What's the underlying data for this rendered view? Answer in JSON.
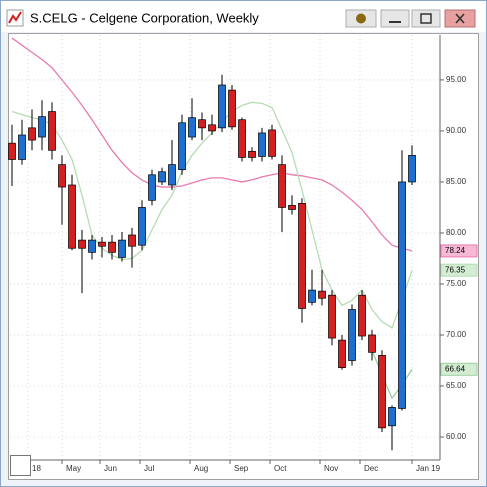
{
  "chart_data": {
    "type": "candlestick",
    "title": "S.CELG - Celgene Corporation, Weekly",
    "open": [
      88.8,
      87.2,
      90.3,
      89.4,
      91.9,
      86.7,
      84.7,
      79.3,
      78.1,
      79.1,
      79.1,
      77.6,
      79.8,
      78.8,
      83.2,
      85,
      84.7,
      86.2,
      89.4,
      91.1,
      90.6,
      90.3,
      94,
      91.1,
      88,
      87.5,
      90.1,
      86.7,
      82.7,
      82.9,
      73.2,
      74.3,
      73.9,
      69.5,
      67.5,
      73.9,
      70,
      68,
      61.1,
      62.8,
      85
    ],
    "high": [
      90.6,
      91.1,
      92.1,
      93,
      92.8,
      87.6,
      85.7,
      80.3,
      79.8,
      79.6,
      79.8,
      80.1,
      80.5,
      83.2,
      86.2,
      86.4,
      89.1,
      91.6,
      93.2,
      91.8,
      91.6,
      95.5,
      94.5,
      91.3,
      88.4,
      90.3,
      90.6,
      87.6,
      83.7,
      83.4,
      76.4,
      76.4,
      74.4,
      70,
      73,
      74.4,
      70.5,
      68.5,
      63.1,
      88.1,
      88.6
    ],
    "low": [
      84.6,
      86.7,
      88.1,
      88.1,
      87.2,
      80.8,
      78.3,
      74.1,
      77.4,
      77.6,
      77.4,
      77.2,
      76.6,
      78.3,
      82.7,
      84.7,
      84.2,
      85.7,
      89.1,
      89.1,
      89.6,
      89.9,
      90.1,
      87,
      87,
      87,
      87.2,
      80.1,
      81.8,
      71.2,
      72.9,
      72.9,
      69,
      66.6,
      67,
      69.5,
      67.5,
      60.5,
      58.7,
      62.6,
      84.7
    ],
    "close": [
      87.2,
      89.6,
      89.1,
      91.4,
      88.1,
      84.5,
      78.5,
      78.5,
      79.3,
      78.7,
      78.1,
      79.3,
      78.7,
      82.5,
      85.7,
      86,
      86.7,
      90.8,
      91.3,
      90.3,
      90,
      94.5,
      90.4,
      87.4,
      87.4,
      89.8,
      87.5,
      82.5,
      82.3,
      72.6,
      74.4,
      73.6,
      69.7,
      66.8,
      72.5,
      69.9,
      68.3,
      60.9,
      62.9,
      85,
      87.6
    ],
    "up_color": "#1e6fd0",
    "down_color": "#d42020",
    "series": [
      {
        "color": "#e87ab0",
        "tag_color": "#f6b8d4",
        "values": [
          99.1,
          98.4,
          97.7,
          97,
          96.2,
          95,
          93.8,
          92.5,
          91.1,
          89.6,
          88.1,
          86.9,
          85.9,
          85.2,
          84.7,
          84.5,
          84.5,
          84.6,
          84.9,
          85.2,
          85.4,
          85.4,
          85.2,
          85,
          85.2,
          85.5,
          85.7,
          85.9,
          85.7,
          85.6,
          85.4,
          85.2,
          84.7,
          84,
          83.2,
          82.3,
          81.1,
          79.8,
          78.8,
          78.5,
          78.24
        ]
      },
      {
        "color": "#b5dcb5",
        "tag_color": "#d3ecd3",
        "values": [
          91.9,
          91.6,
          91.3,
          91.1,
          90.6,
          89.1,
          87.2,
          83.7,
          79.8,
          78.5,
          77.8,
          77.4,
          77.5,
          78.3,
          80.3,
          82.3,
          83.7,
          86,
          87.6,
          88.8,
          89.8,
          90.9,
          91.9,
          92.5,
          92.8,
          92.7,
          92.3,
          90.1,
          87.9,
          84.2,
          80.3,
          76.4,
          74.4,
          72.9,
          73.4,
          74.4,
          72.5,
          71.3,
          70.7,
          73.4,
          76.35
        ]
      },
      {
        "color": "#9ccf9c",
        "tag_color": "#d3ecd3",
        "values": [
          null,
          null,
          null,
          null,
          null,
          null,
          null,
          null,
          null,
          null,
          null,
          null,
          null,
          null,
          null,
          null,
          null,
          null,
          null,
          null,
          null,
          null,
          null,
          null,
          null,
          null,
          null,
          null,
          null,
          null,
          null,
          null,
          null,
          null,
          null,
          null,
          68.5,
          66.1,
          63.8,
          65.1,
          66.64
        ]
      }
    ],
    "xlim": [
      -0.2,
      42.8
    ],
    "xticks": [
      {
        "value": 1.6,
        "label": "18"
      },
      {
        "value": 5,
        "label": "May"
      },
      {
        "value": 8.8,
        "label": "Jun"
      },
      {
        "value": 12.8,
        "label": "Jul"
      },
      {
        "value": 17.8,
        "label": "Aug"
      },
      {
        "value": 21.8,
        "label": "Sep"
      },
      {
        "value": 25.8,
        "label": "Oct"
      },
      {
        "value": 30.8,
        "label": "Nov"
      },
      {
        "value": 34.8,
        "label": "Dec"
      },
      {
        "value": 40,
        "label": "Jan 19"
      }
    ],
    "ylim": [
      57.75,
      99.4
    ],
    "yticks": [
      {
        "value": 60,
        "label": "60.00"
      },
      {
        "value": 65,
        "label": "65.00"
      },
      {
        "value": 70,
        "label": "70.00"
      },
      {
        "value": 75,
        "label": "75.00"
      },
      {
        "value": 80,
        "label": "80.00"
      },
      {
        "value": 85,
        "label": "85.00"
      },
      {
        "value": 90,
        "label": "90.00"
      },
      {
        "value": 95,
        "label": "95.00"
      }
    ],
    "grid": true
  }
}
